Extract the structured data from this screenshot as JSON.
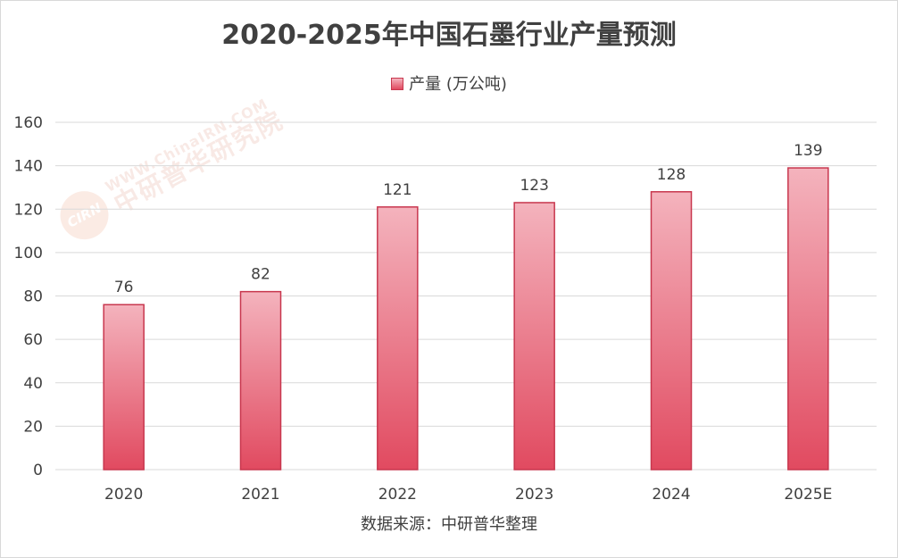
{
  "chart_data": {
    "type": "bar",
    "title": "2020-2025年中国石墨行业产量预测",
    "categories": [
      "2020",
      "2021",
      "2022",
      "2023",
      "2024",
      "2025E"
    ],
    "series": [
      {
        "name": "产量 (万公吨)",
        "values": [
          76,
          82,
          121,
          123,
          128,
          139
        ]
      }
    ],
    "yticks": [
      0,
      20,
      40,
      60,
      80,
      100,
      120,
      140,
      160
    ],
    "ylim": [
      0,
      160
    ],
    "xlabel": "",
    "ylabel": "",
    "grid": true,
    "legend_position": "top-center",
    "data_labels": true,
    "bar_color_top": "#f4b3bd",
    "bar_color_bottom": "#e14a60",
    "bar_stroke": "#c8374e"
  },
  "source_note": "数据来源：中研普华整理",
  "watermark": {
    "logo_text": "CIRN",
    "url_text": "WWW.ChinaIRN.COM",
    "name_text": "中研普华研究院"
  }
}
